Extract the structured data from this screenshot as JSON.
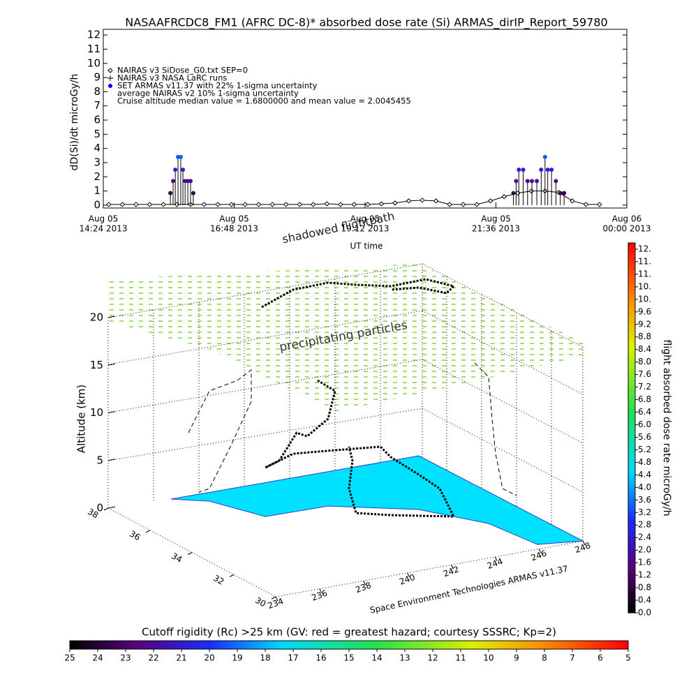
{
  "chart_data": [
    {
      "type": "line",
      "title": "NASAAFRCDC8_FM1 (AFRC DC-8)* absorbed dose rate (Si) ARMAS_dirIP_Report_59780",
      "ylabel": "dD(Si)/dt microGy/h",
      "xlabel": "UT time",
      "xlim": [
        14.4,
        24.0
      ],
      "xticks": [
        {
          "value": 14.4,
          "label": [
            "Aug 05",
            "14:24 2013"
          ]
        },
        {
          "value": 16.8,
          "label": [
            "Aug 05",
            "16:48 2013"
          ]
        },
        {
          "value": 19.2,
          "label": [
            "Aug 05",
            "19:12 2013"
          ]
        },
        {
          "value": 21.6,
          "label": [
            "Aug 05",
            "21:36 2013"
          ]
        },
        {
          "value": 24.0,
          "label": [
            "Aug 06",
            "00:00 2013"
          ]
        }
      ],
      "ylim": [
        -0.2,
        12.4
      ],
      "yticks": [
        0,
        1,
        2,
        3,
        4,
        5,
        6,
        7,
        8,
        9,
        10,
        11,
        12
      ],
      "legend": [
        "NAIRAS v3 SiDose_G0.txt SEP=0",
        "NAIRAS v3 NASA LaRC runs",
        "SET ARMAS v11.37 with 22% 1-sigma uncertainty",
        "average NAIRAS v2 10% 1-sigma uncertainty",
        "Cruise altitude median value = 1.6800000 and mean value = 2.0045455"
      ],
      "series": [
        {
          "name": "NAIRAS v3 SiDose_G0.txt SEP=0",
          "color": "#000000",
          "x": [
            14.5,
            14.75,
            15.0,
            15.25,
            15.5,
            15.75,
            16.0,
            16.25,
            16.5,
            16.75,
            17.0,
            17.25,
            17.5,
            17.75,
            18.0,
            18.25,
            18.5,
            18.75,
            19.0,
            19.25,
            19.5,
            19.75,
            20.0,
            20.25,
            20.5,
            20.75,
            21.0,
            21.25,
            21.5,
            21.75,
            22.0,
            22.25,
            22.5,
            22.75,
            23.0,
            23.25,
            23.5
          ],
          "values": [
            0.05,
            0.05,
            0.05,
            0.05,
            0.05,
            0.05,
            0.05,
            0.05,
            0.05,
            0.05,
            0.05,
            0.05,
            0.05,
            0.05,
            0.05,
            0.05,
            0.1,
            0.05,
            0.05,
            0.05,
            0.1,
            0.15,
            0.3,
            0.35,
            0.3,
            0.05,
            0.05,
            0.05,
            0.3,
            0.6,
            0.85,
            1.0,
            1.0,
            0.9,
            0.3,
            0.05,
            0.05
          ]
        },
        {
          "name": "SET ARMAS v11.37 with 22% 1-sigma uncertainty",
          "color": "#0000ff",
          "x": [
            15.63,
            15.68,
            15.72,
            15.77,
            15.82,
            15.86,
            15.9,
            15.95,
            16.0,
            16.05,
            21.92,
            21.97,
            22.02,
            22.1,
            22.18,
            22.26,
            22.35,
            22.43,
            22.5,
            22.55,
            22.62,
            22.7,
            22.78,
            22.85
          ],
          "values": [
            0.85,
            1.7,
            2.5,
            3.4,
            3.4,
            2.5,
            1.7,
            1.7,
            1.7,
            0.85,
            0.85,
            1.7,
            2.5,
            2.5,
            1.7,
            1.7,
            1.7,
            2.5,
            3.4,
            2.5,
            2.5,
            1.7,
            0.85,
            0.85
          ]
        }
      ]
    },
    {
      "type": "surface3d",
      "annotations": [
        "shadowed flightpath",
        "precipitating particles",
        "Space Environment Technologies ARMAS v11.37"
      ],
      "zlabel": "Altitude (km)",
      "zticks": [
        0,
        5,
        10,
        15,
        20
      ],
      "yticks": [
        30,
        32,
        34,
        36,
        38
      ],
      "xticks": [
        234,
        236,
        238,
        240,
        242,
        244,
        246,
        248
      ]
    },
    {
      "type": "colorbar",
      "label": "flight absorbed dose rate microGy/h",
      "range": [
        0,
        11.8
      ],
      "ticks": [
        {
          "value": 0,
          "label": "0.0"
        },
        0.4,
        0.8,
        1.2,
        1.6,
        {
          "value": 2.0,
          "label": "2.0"
        },
        2.4,
        2.8,
        3.2,
        3.6,
        {
          "value": 4.0,
          "label": "4.0"
        },
        4.4,
        4.8,
        5.2,
        5.6,
        {
          "value": 6.0,
          "label": "6.0"
        },
        6.4,
        6.8,
        7.2,
        7.6,
        {
          "value": 8.0,
          "label": "8.0"
        },
        8.4,
        8.8,
        9.2,
        9.6,
        {
          "value": 10.0,
          "label": "10."
        },
        {
          "value": 10.4,
          "label": "10."
        },
        {
          "value": 10.8,
          "label": "11."
        },
        {
          "value": 11.2,
          "label": "11."
        },
        {
          "value": 11.6,
          "label": "12."
        }
      ]
    },
    {
      "type": "colorbar",
      "label": "Cutoff rigidity (Rc) >25 km (GV: red = greatest hazard; courtesy SSSRC; Kp=2)",
      "range": [
        25,
        5
      ],
      "ticks": [
        25,
        24,
        23,
        22,
        21,
        20,
        19,
        18,
        17,
        16,
        15,
        14,
        13,
        12,
        11,
        10,
        9,
        8,
        7,
        6,
        5
      ]
    }
  ]
}
